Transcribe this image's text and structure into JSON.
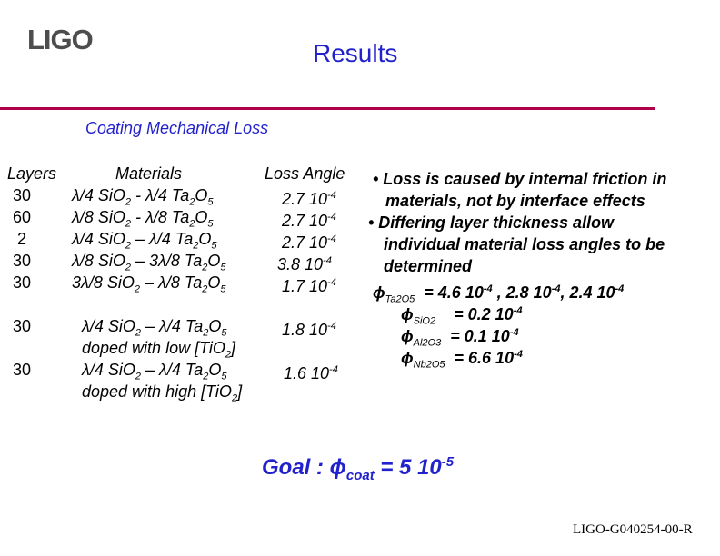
{
  "header": {
    "logo": "LIGO",
    "title": "Results",
    "subtitle": "Coating Mechanical Loss"
  },
  "table": {
    "headers": {
      "layers": "Layers",
      "materials": "Materials",
      "loss": "Loss Angle"
    },
    "rows": [
      {
        "layers": "30",
        "materials": [
          "λ/4 SiO",
          "2",
          " - λ/4 Ta",
          "2",
          "O",
          "5"
        ],
        "loss": [
          "2.7 10",
          "-4"
        ]
      },
      {
        "layers": "60",
        "materials": [
          "λ/8 SiO",
          "2",
          " - λ/8 Ta",
          "2",
          "O",
          "5"
        ],
        "loss": [
          "2.7 10",
          "-4"
        ]
      },
      {
        "layers": "2",
        "materials": [
          "λ/4 SiO",
          "2",
          " – λ/4 Ta",
          "2",
          "O",
          "5"
        ],
        "loss": [
          "2.7 10",
          "-4"
        ]
      },
      {
        "layers": "30",
        "materials": [
          "λ/8 SiO",
          "2",
          " – 3λ/8 Ta",
          "2",
          "O",
          "5"
        ],
        "loss": [
          "3.8 10",
          "-4"
        ]
      },
      {
        "layers": "30",
        "materials": [
          "3λ/8 SiO",
          "2",
          " – λ/8 Ta",
          "2",
          "O",
          "5"
        ],
        "loss": [
          "1.7 10",
          "-4"
        ]
      }
    ],
    "doped_rows": [
      {
        "layers": "30",
        "materials": [
          "λ/4 SiO",
          "2",
          " – λ/4 Ta",
          "2",
          "O",
          "5"
        ],
        "loss": [
          "1.8 10",
          "-4"
        ],
        "note": [
          "doped with low [TiO",
          "2",
          "]"
        ]
      },
      {
        "layers": "30",
        "materials": [
          "λ/4 SiO",
          "2",
          " – λ/4 Ta",
          "2",
          "O",
          "5"
        ],
        "loss": [
          "1.6 10",
          "-4"
        ],
        "note": [
          "doped with high [TiO",
          "2",
          "]"
        ]
      }
    ]
  },
  "bullets": {
    "b1_line1": "• Loss is caused by internal friction in",
    "b1_line2": "materials, not by interface effects",
    "b2_line1": "• Differing layer thickness allow",
    "b2_line2": "individual material loss angles to be",
    "b2_line3": "determined",
    "phi": "ϕ",
    "ta_sub": "Ta2O5",
    "ta_vals": [
      "= 4.6 10",
      "-4",
      " , 2.8 10",
      "-4",
      ", 2.4 10",
      "-4"
    ],
    "si_sub": "SiO2",
    "si_vals": [
      "= 0.2 10",
      "-4"
    ],
    "al_sub": "Al2O3",
    "al_vals": [
      "= 0.1 10",
      "-4"
    ],
    "nb_sub": "Nb2O5",
    "nb_vals": [
      "= 6.6 10",
      "-4"
    ]
  },
  "goal": {
    "prefix": "Goal : ",
    "phi": "ϕ",
    "sub": "coat",
    "value": " = 5 10",
    "exp": "-5"
  },
  "footer": {
    "doc_id": "LIGO-G040254-00-R"
  }
}
